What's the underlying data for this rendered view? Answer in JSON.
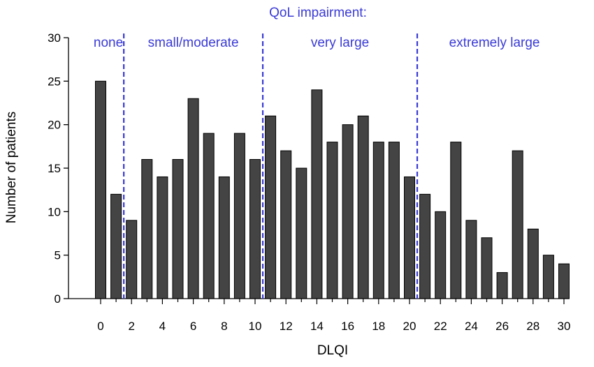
{
  "chart_data": {
    "type": "bar",
    "title": "QoL impairment:",
    "xlabel": "DLQI",
    "ylabel": "Number of patients",
    "x": [
      0,
      1,
      2,
      3,
      4,
      5,
      6,
      7,
      8,
      9,
      10,
      11,
      12,
      13,
      14,
      15,
      16,
      17,
      18,
      19,
      20,
      21,
      22,
      23,
      24,
      25,
      26,
      27,
      28,
      29,
      30
    ],
    "values": [
      25,
      12,
      9,
      16,
      14,
      16,
      23,
      19,
      14,
      19,
      16,
      21,
      17,
      15,
      24,
      18,
      20,
      21,
      18,
      18,
      14,
      12,
      10,
      18,
      9,
      7,
      3,
      17,
      8,
      5,
      4
    ],
    "xticks": [
      "0",
      "2",
      "4",
      "6",
      "8",
      "10",
      "12",
      "14",
      "16",
      "18",
      "20",
      "22",
      "24",
      "26",
      "28",
      "30"
    ],
    "yticks": [
      "0",
      "5",
      "10",
      "15",
      "20",
      "25",
      "30"
    ],
    "ylim": [
      0,
      30
    ],
    "grid": false,
    "colors": {
      "bar": "#444444",
      "annotation": "#3b3bd6"
    },
    "regions": [
      {
        "label": "none",
        "from": -0.5,
        "to": 1.5
      },
      {
        "label": "small/moderate",
        "from": 1.5,
        "to": 10.5
      },
      {
        "label": "very large",
        "from": 10.5,
        "to": 20.5
      },
      {
        "label": "extremely large",
        "from": 20.5,
        "to": 30.5
      }
    ],
    "dividers": [
      1.5,
      10.5,
      20.5
    ]
  }
}
